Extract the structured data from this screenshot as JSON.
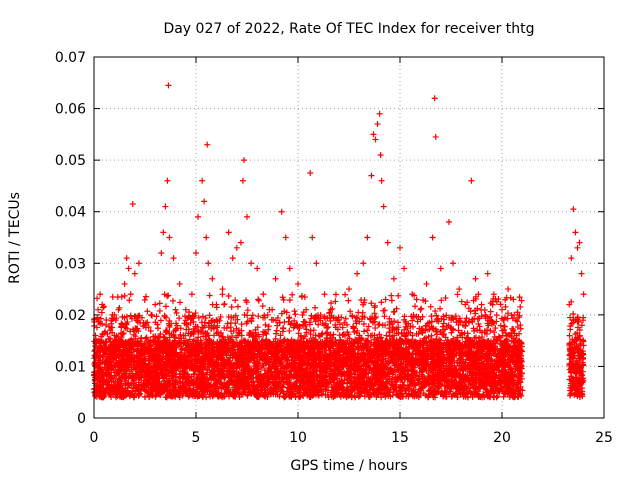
{
  "chart_data": {
    "type": "scatter",
    "title": "Day 027 of 2022, Rate Of TEC Index for receiver thtg",
    "xlabel": "GPS time / hours",
    "ylabel": "ROTI / TECUs",
    "xlim": [
      0,
      25
    ],
    "ylim": [
      0,
      0.07
    ],
    "x_ticks": [
      0,
      5,
      10,
      15,
      20,
      25
    ],
    "x_tick_labels": [
      "0",
      "5",
      "10",
      "15",
      "20",
      "25"
    ],
    "y_ticks": [
      0,
      0.01,
      0.02,
      0.03,
      0.04,
      0.05,
      0.06,
      0.07
    ],
    "y_tick_labels": [
      "0",
      "0.01",
      "0.02",
      "0.03",
      "0.04",
      "0.05",
      "0.06",
      "0.07"
    ],
    "grid": true,
    "marker": "plus",
    "color": "#ff0000",
    "coverage": [
      [
        0,
        21.0
      ],
      [
        23.3,
        24.0
      ]
    ],
    "series": [
      {
        "points": [
          [
            0.2,
            0.021
          ],
          [
            0.3,
            0.024
          ],
          [
            0.4,
            0.022
          ],
          [
            0.6,
            0.019
          ],
          [
            0.8,
            0.017
          ],
          [
            1.0,
            0.016
          ],
          [
            1.2,
            0.021
          ],
          [
            1.5,
            0.026
          ],
          [
            1.6,
            0.031
          ],
          [
            1.7,
            0.029
          ],
          [
            1.8,
            0.024
          ],
          [
            1.9,
            0.0415
          ],
          [
            2.0,
            0.028
          ],
          [
            2.2,
            0.03
          ],
          [
            2.5,
            0.018
          ],
          [
            2.8,
            0.02
          ],
          [
            3.0,
            0.022
          ],
          [
            3.3,
            0.032
          ],
          [
            3.4,
            0.036
          ],
          [
            3.5,
            0.041
          ],
          [
            3.6,
            0.046
          ],
          [
            3.65,
            0.0645
          ],
          [
            3.7,
            0.035
          ],
          [
            3.9,
            0.031
          ],
          [
            4.2,
            0.026
          ],
          [
            4.5,
            0.021
          ],
          [
            4.8,
            0.024
          ],
          [
            5.0,
            0.032
          ],
          [
            5.1,
            0.039
          ],
          [
            5.3,
            0.046
          ],
          [
            5.4,
            0.042
          ],
          [
            5.5,
            0.035
          ],
          [
            5.55,
            0.053
          ],
          [
            5.6,
            0.03
          ],
          [
            5.8,
            0.027
          ],
          [
            6.0,
            0.022
          ],
          [
            6.3,
            0.025
          ],
          [
            6.6,
            0.036
          ],
          [
            6.8,
            0.031
          ],
          [
            7.0,
            0.033
          ],
          [
            7.2,
            0.034
          ],
          [
            7.3,
            0.046
          ],
          [
            7.35,
            0.05
          ],
          [
            7.5,
            0.039
          ],
          [
            7.7,
            0.03
          ],
          [
            8.0,
            0.029
          ],
          [
            8.3,
            0.024
          ],
          [
            8.6,
            0.021
          ],
          [
            8.9,
            0.027
          ],
          [
            9.2,
            0.04
          ],
          [
            9.4,
            0.035
          ],
          [
            9.6,
            0.029
          ],
          [
            10.0,
            0.026
          ],
          [
            10.4,
            0.021
          ],
          [
            10.6,
            0.0475
          ],
          [
            10.7,
            0.035
          ],
          [
            10.9,
            0.03
          ],
          [
            11.3,
            0.024
          ],
          [
            11.6,
            0.021
          ],
          [
            12.0,
            0.019
          ],
          [
            12.5,
            0.025
          ],
          [
            12.9,
            0.028
          ],
          [
            13.2,
            0.03
          ],
          [
            13.4,
            0.035
          ],
          [
            13.6,
            0.047
          ],
          [
            13.7,
            0.055
          ],
          [
            13.8,
            0.054
          ],
          [
            13.9,
            0.057
          ],
          [
            14.0,
            0.059
          ],
          [
            14.05,
            0.051
          ],
          [
            14.1,
            0.046
          ],
          [
            14.2,
            0.041
          ],
          [
            14.4,
            0.034
          ],
          [
            14.7,
            0.027
          ],
          [
            15.0,
            0.033
          ],
          [
            15.2,
            0.029
          ],
          [
            15.6,
            0.024
          ],
          [
            16.0,
            0.021
          ],
          [
            16.3,
            0.026
          ],
          [
            16.6,
            0.035
          ],
          [
            16.7,
            0.062
          ],
          [
            16.75,
            0.0545
          ],
          [
            17.0,
            0.029
          ],
          [
            17.4,
            0.038
          ],
          [
            17.6,
            0.03
          ],
          [
            17.9,
            0.025
          ],
          [
            18.2,
            0.022
          ],
          [
            18.5,
            0.046
          ],
          [
            18.7,
            0.027
          ],
          [
            19.0,
            0.022
          ],
          [
            19.3,
            0.028
          ],
          [
            19.6,
            0.024
          ],
          [
            20.0,
            0.021
          ],
          [
            20.3,
            0.025
          ],
          [
            20.6,
            0.02
          ],
          [
            20.9,
            0.018
          ],
          [
            23.3,
            0.022
          ],
          [
            23.4,
            0.031
          ],
          [
            23.5,
            0.0405
          ],
          [
            23.6,
            0.036
          ],
          [
            23.7,
            0.033
          ],
          [
            23.8,
            0.034
          ],
          [
            23.9,
            0.028
          ],
          [
            24.0,
            0.024
          ]
        ]
      }
    ]
  }
}
